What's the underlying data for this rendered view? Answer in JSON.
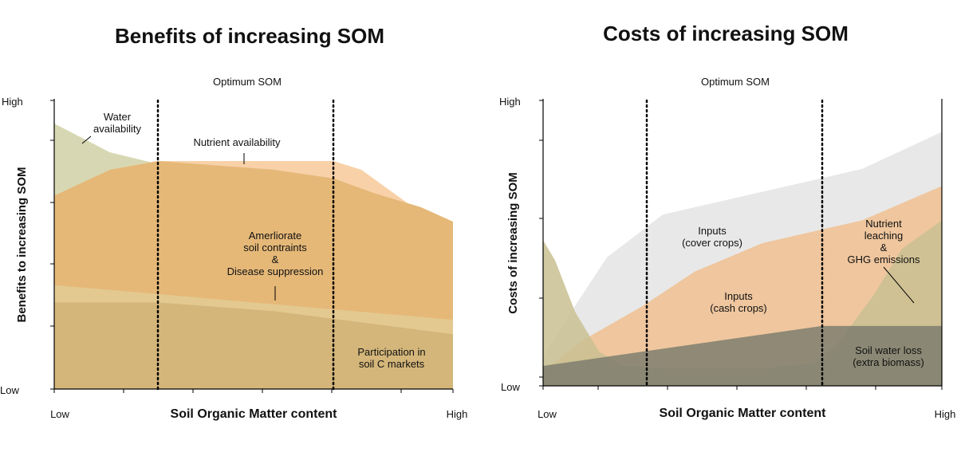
{
  "chart_data": [
    {
      "type": "area",
      "title": "Benefits of increasing SOM",
      "xlabel": "Soil Organic Matter content",
      "ylabel": "Benefits to increasing SOM",
      "x_tick_labels": [
        "Low",
        "High"
      ],
      "y_tick_labels": [
        "Low",
        "High"
      ],
      "xlim": [
        0,
        100
      ],
      "ylim": [
        0,
        100
      ],
      "optimum_label": "Optimum SOM",
      "optimum_range": [
        26,
        70
      ],
      "series": [
        {
          "name": "Water availability",
          "label": "Water\navailability",
          "color": "#d7d8b3",
          "x": [
            0,
            14,
            26,
            100
          ],
          "y": [
            92,
            82,
            78,
            58
          ]
        },
        {
          "name": "Nutrient availability",
          "label": "Nutrient availability",
          "color": "#f8d1a8",
          "x": [
            0,
            14,
            26,
            70,
            77,
            90,
            100
          ],
          "y": [
            67,
            76,
            79,
            79,
            76,
            63,
            58
          ]
        },
        {
          "name": "Ameliorate soil constraints & Disease suppression",
          "label": "Amerliorate\nsoil contraints\n&\nDisease suppression",
          "color": "#e5b878",
          "x": [
            0,
            14,
            26,
            55,
            70,
            80,
            92,
            100
          ],
          "y": [
            67,
            76,
            79,
            76,
            73,
            68,
            63,
            58
          ]
        },
        {
          "name": "Participation in soil C markets",
          "label": "Participation in\nsoil C markets",
          "color": "#e3c990",
          "x": [
            0,
            100
          ],
          "y": [
            36,
            24
          ]
        },
        {
          "name": "Participation in soil C markets (lower)",
          "label": "",
          "color": "#d4b67a",
          "x": [
            0,
            26,
            55,
            100
          ],
          "y": [
            30,
            30,
            27,
            19
          ]
        }
      ]
    },
    {
      "type": "area",
      "title": "Costs of increasing SOM",
      "xlabel": "Soil Organic Matter content",
      "ylabel": "Costs of increasing SOM",
      "x_tick_labels": [
        "Low",
        "High"
      ],
      "y_tick_labels": [
        "Low",
        "High"
      ],
      "xlim": [
        0,
        100
      ],
      "ylim": [
        0,
        100
      ],
      "optimum_label": "Optimum SOM",
      "optimum_range": [
        26,
        70
      ],
      "series": [
        {
          "name": "Inputs (cover crops)",
          "label": "Inputs\n(cover crops)",
          "color": "#e8e8e8",
          "x": [
            0,
            8,
            16,
            30,
            55,
            80,
            100
          ],
          "y": [
            10,
            28,
            45,
            60,
            68,
            76,
            89
          ]
        },
        {
          "name": "Inputs (cash crops)",
          "label": "Inputs\n(cash crops)",
          "color": "#f0c090",
          "x": [
            0,
            10,
            25,
            38,
            55,
            80,
            100
          ],
          "y": [
            5,
            16,
            28,
            40,
            50,
            58,
            70
          ]
        },
        {
          "name": "Nutrient leaching & GHG emissions",
          "label": "Nutrient\nleaching\n&\nGHG emissions",
          "color": "#c9bf90",
          "x": [
            0,
            3,
            8,
            14,
            20,
            32,
            55,
            68,
            74,
            83,
            90,
            100
          ],
          "y": [
            51,
            44,
            26,
            12,
            7,
            6,
            6,
            8,
            15,
            32,
            48,
            58
          ]
        },
        {
          "name": "Soil water loss (extra biomass)",
          "label": "Soil water loss\n(extra biomass)",
          "color": "#7e7e6e",
          "x": [
            0,
            70,
            100
          ],
          "y": [
            7,
            21,
            21
          ]
        }
      ]
    }
  ]
}
